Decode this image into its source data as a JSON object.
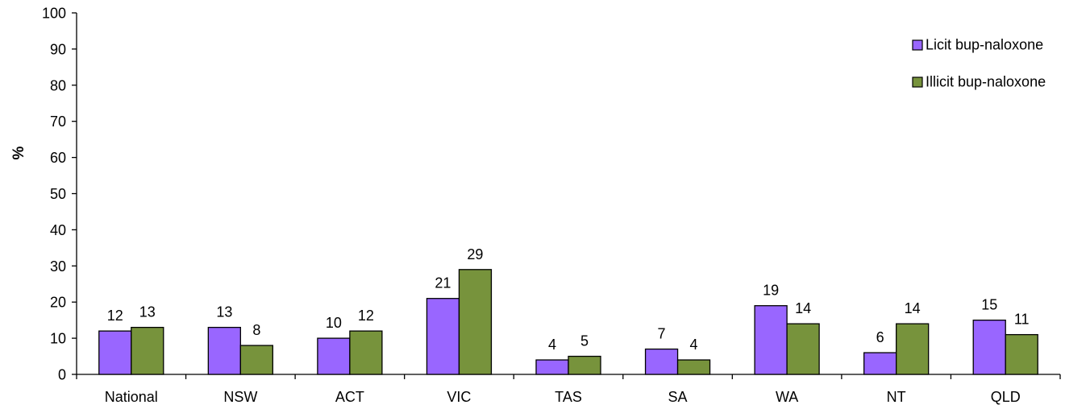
{
  "chart_data": {
    "type": "bar",
    "title": "",
    "xlabel": "",
    "ylabel": "%",
    "ylim": [
      0,
      100
    ],
    "yticks": [
      0,
      10,
      20,
      30,
      40,
      50,
      60,
      70,
      80,
      90,
      100
    ],
    "categories": [
      "National",
      "NSW",
      "ACT",
      "VIC",
      "TAS",
      "SA",
      "WA",
      "NT",
      "QLD"
    ],
    "series": [
      {
        "name": "Licit bup-naloxone",
        "color": "#9966ff",
        "values": [
          12,
          13,
          10,
          21,
          4,
          7,
          19,
          6,
          15
        ]
      },
      {
        "name": "Illicit bup-naloxone",
        "color": "#77933c",
        "values": [
          13,
          8,
          12,
          29,
          5,
          4,
          14,
          14,
          11
        ]
      }
    ],
    "grid": false,
    "data_labels": true,
    "legend_position": "top-right"
  }
}
